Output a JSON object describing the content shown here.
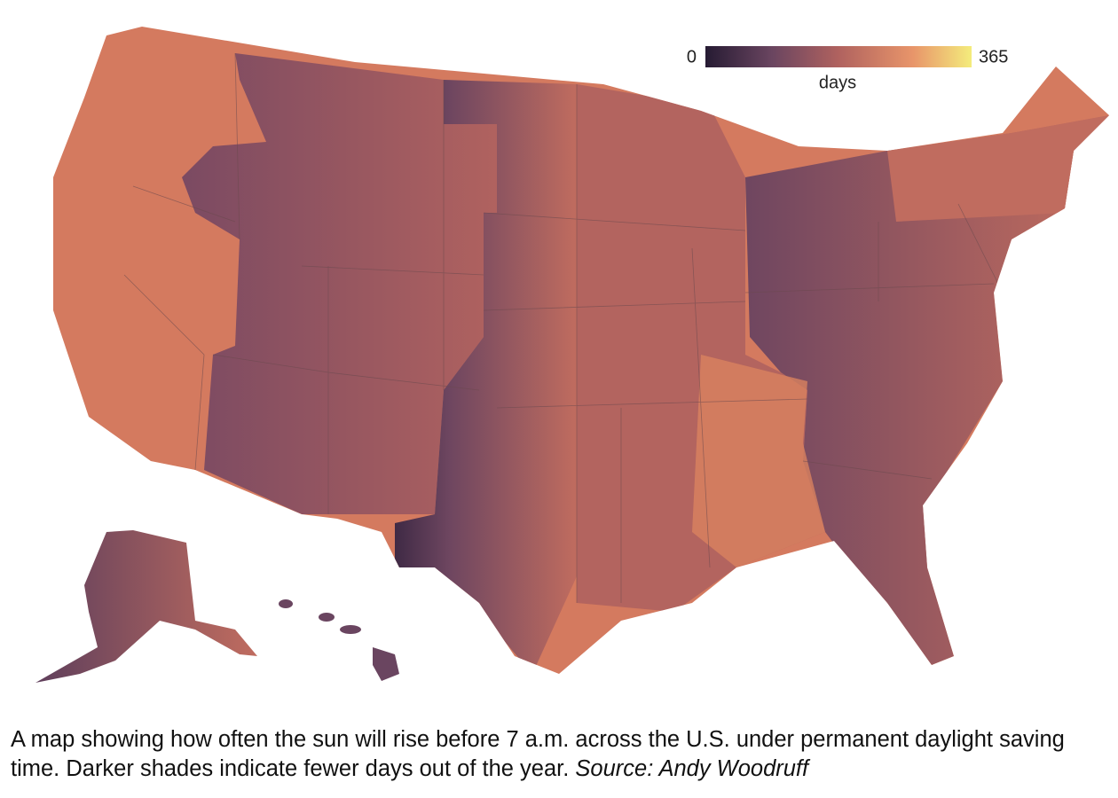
{
  "legend": {
    "min": 0,
    "max": 365,
    "label": "days"
  },
  "caption": {
    "text": "A map showing how often the sun will rise before 7 a.m. across the U.S. under permanent daylight saving time. Darker shades indicate fewer days out of the year.",
    "source": "Source: Andy Woodruff"
  }
}
